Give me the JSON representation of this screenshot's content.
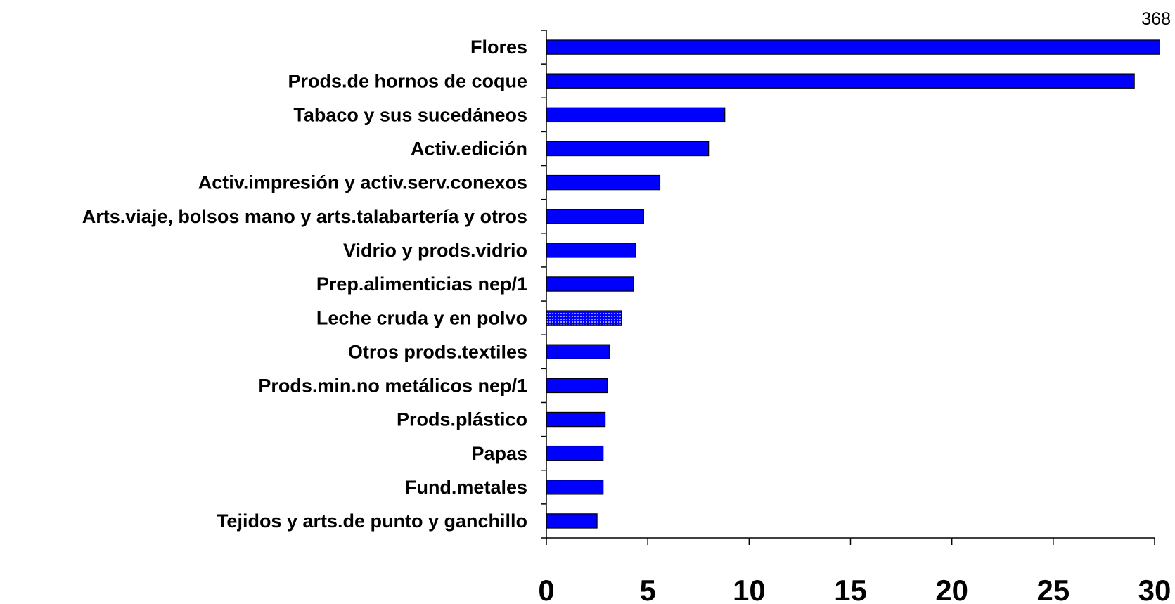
{
  "chart_data": {
    "type": "bar",
    "orientation": "horizontal",
    "categories": [
      "Flores",
      "Prods.de hornos de coque",
      "Tabaco y sus sucedáneos",
      "Activ.edición",
      "Activ.impresión y activ.serv.conexos",
      "Arts.viaje, bolsos mano y arts.talabartería y otros",
      "Vidrio y prods.vidrio",
      "Prep.alimenticias nep/1",
      "Leche cruda y en polvo",
      "Otros prods.textiles",
      "Prods.min.no metálicos nep/1",
      "Prods.plástico",
      "Papas",
      "Fund.metales",
      "Tejidos y arts.de punto y ganchillo"
    ],
    "values": [
      368,
      29.0,
      8.8,
      8.0,
      5.6,
      4.8,
      4.4,
      4.3,
      3.7,
      3.1,
      3.0,
      2.9,
      2.8,
      2.8,
      2.5
    ],
    "value_labels": [
      "368",
      null,
      null,
      null,
      null,
      null,
      null,
      null,
      null,
      null,
      null,
      null,
      null,
      null,
      null
    ],
    "color": "#0000ff",
    "pattern_index": 8,
    "xlim": [
      0,
      30
    ],
    "xticks": [
      0,
      5,
      10,
      15,
      20,
      25,
      30
    ]
  }
}
